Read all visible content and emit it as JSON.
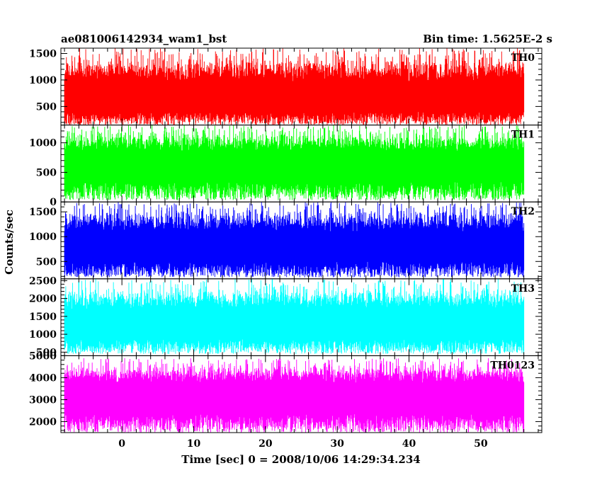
{
  "chart_data": {
    "type": "line",
    "title": "ae081006142934_wam1_bst",
    "subtitle": "Bin time: 1.5625E-2 s",
    "xlabel": "Time [sec] 0 = 2008/10/06 14:29:34.234",
    "ylabel": "Counts/sec",
    "xlim": [
      -8.5,
      58.5
    ],
    "data_x_range": [
      -8,
      56
    ],
    "x_ticks": [
      0,
      10,
      20,
      30,
      40,
      50
    ],
    "x_tick_labels": [
      "0",
      "10",
      "20",
      "30",
      "40",
      "50"
    ],
    "x_minor_step": 2,
    "panels": [
      {
        "label": "TH0",
        "color": "#ff0000",
        "ylim": [
          150,
          1600
        ],
        "y_ticks": [
          500,
          1000,
          1500
        ],
        "y_tick_labels": [
          "500",
          "1000",
          "1500"
        ],
        "y_minor_step": 100,
        "noise": {
          "base": 600,
          "low": 150,
          "high": 1600,
          "seed": 11
        }
      },
      {
        "label": "TH1",
        "color": "#00ff00",
        "ylim": [
          0,
          1300
        ],
        "y_ticks": [
          0,
          500,
          1000
        ],
        "y_tick_labels": [
          "0",
          "500",
          "1000"
        ],
        "y_minor_step": 100,
        "noise": {
          "base": 600,
          "low": 30,
          "high": 1300,
          "seed": 23
        }
      },
      {
        "label": "TH2",
        "color": "#0000ff",
        "ylim": [
          150,
          1700
        ],
        "y_ticks": [
          500,
          1000,
          1500
        ],
        "y_tick_labels": [
          "500",
          "1000",
          "1500"
        ],
        "y_minor_step": 100,
        "noise": {
          "base": 750,
          "low": 180,
          "high": 1700,
          "seed": 37
        }
      },
      {
        "label": "TH3",
        "color": "#00ffff",
        "ylim": [
          400,
          2550
        ],
        "y_ticks": [
          500,
          1000,
          1500,
          2000,
          2500
        ],
        "y_tick_labels": [
          "500",
          "1000",
          "1500",
          "2000",
          "2500"
        ],
        "y_minor_step": 100,
        "noise": {
          "base": 1200,
          "low": 450,
          "high": 2550,
          "seed": 51
        }
      },
      {
        "label": "TH0123",
        "color": "#ff00ff",
        "ylim": [
          1500,
          5000
        ],
        "y_ticks": [
          2000,
          3000,
          4000,
          5000
        ],
        "y_tick_labels": [
          "2000",
          "3000",
          "4000",
          "5000"
        ],
        "y_minor_step": 200,
        "noise": {
          "base": 3100,
          "low": 1500,
          "high": 4900,
          "seed": 73
        }
      }
    ],
    "legend": "none",
    "grid": false
  }
}
